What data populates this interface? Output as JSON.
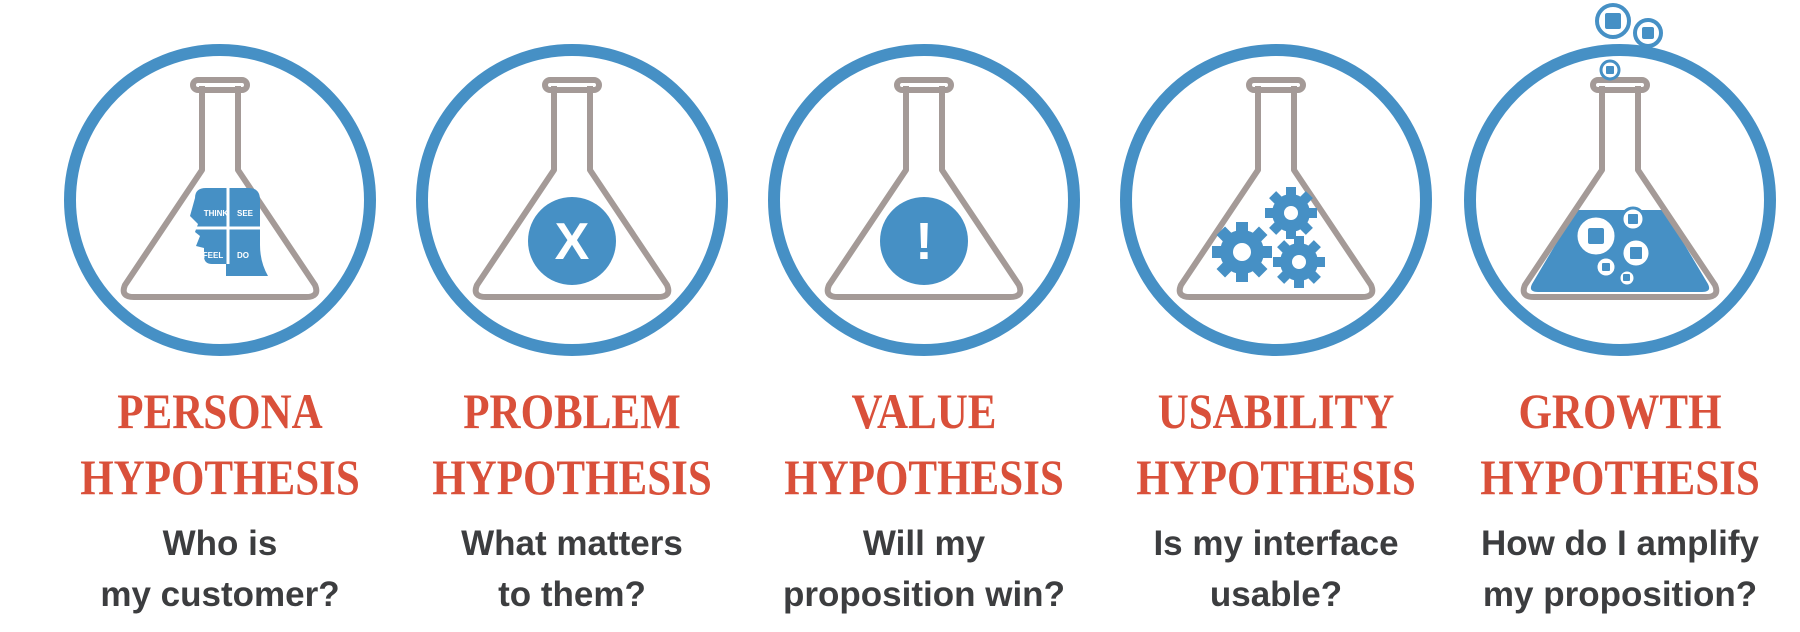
{
  "colors": {
    "blue": "#4690c5",
    "flask_gray": "#a49a97",
    "title_red": "#d9503a",
    "question_gray": "#3c3d3f"
  },
  "panels": [
    {
      "icon": "persona-head-icon",
      "title_line1": "PERSONA",
      "title_line2": "HYPOTHESIS",
      "question_line1": "Who is",
      "question_line2": "my customer?",
      "quadrants": {
        "think": "THINK",
        "see": "SEE",
        "feel": "FEEL",
        "do": "DO"
      }
    },
    {
      "icon": "x-circle-icon",
      "symbol": "X",
      "title_line1": "PROBLEM",
      "title_line2": "HYPOTHESIS",
      "question_line1": "What matters",
      "question_line2": "to them?"
    },
    {
      "icon": "exclamation-circle-icon",
      "symbol": "!",
      "title_line1": "VALUE",
      "title_line2": "HYPOTHESIS",
      "question_line1": "Will my",
      "question_line2": "proposition win?"
    },
    {
      "icon": "gears-icon",
      "title_line1": "USABILITY",
      "title_line2": "HYPOTHESIS",
      "question_line1": "Is my interface",
      "question_line2": "usable?"
    },
    {
      "icon": "bubbling-liquid-icon",
      "title_line1": "GROWTH",
      "title_line2": "HYPOTHESIS",
      "question_line1": "How do I amplify",
      "question_line2": "my proposition?"
    }
  ]
}
